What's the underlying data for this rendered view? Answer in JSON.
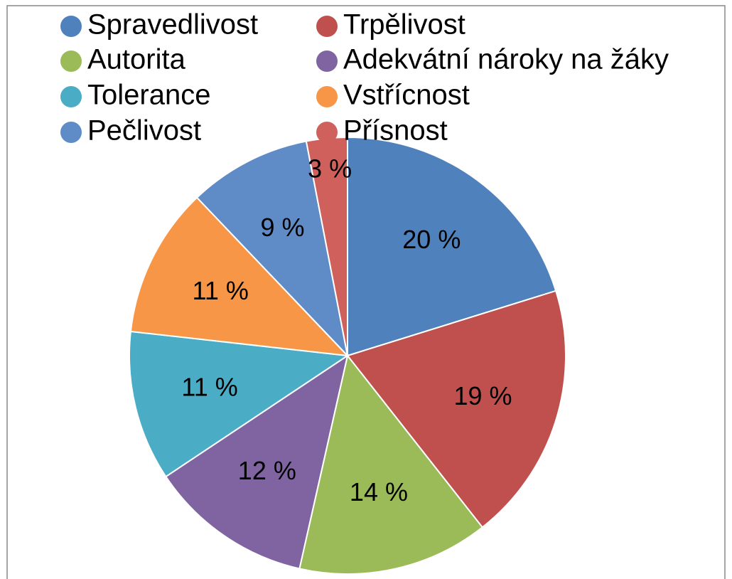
{
  "chart_data": {
    "type": "pie",
    "categories": [
      "Spravedlivost",
      "Trpělivost",
      "Autorita",
      "Adekvátní nároky na žáky",
      "Tolerance",
      "Vstřícnost",
      "Pečlivost",
      "Přísnost"
    ],
    "values": [
      20,
      19,
      14,
      12,
      11,
      11,
      9,
      3
    ],
    "value_labels": [
      "20 %",
      "19 %",
      "14 %",
      "12 %",
      "11 %",
      "11 %",
      "9 %",
      "3 %"
    ],
    "colors": [
      "#4f81bd",
      "#c0504d",
      "#9bbb59",
      "#8064a2",
      "#4bacc6",
      "#f79646",
      "#5f8bc6",
      "#d0605c"
    ],
    "legend": "top"
  }
}
